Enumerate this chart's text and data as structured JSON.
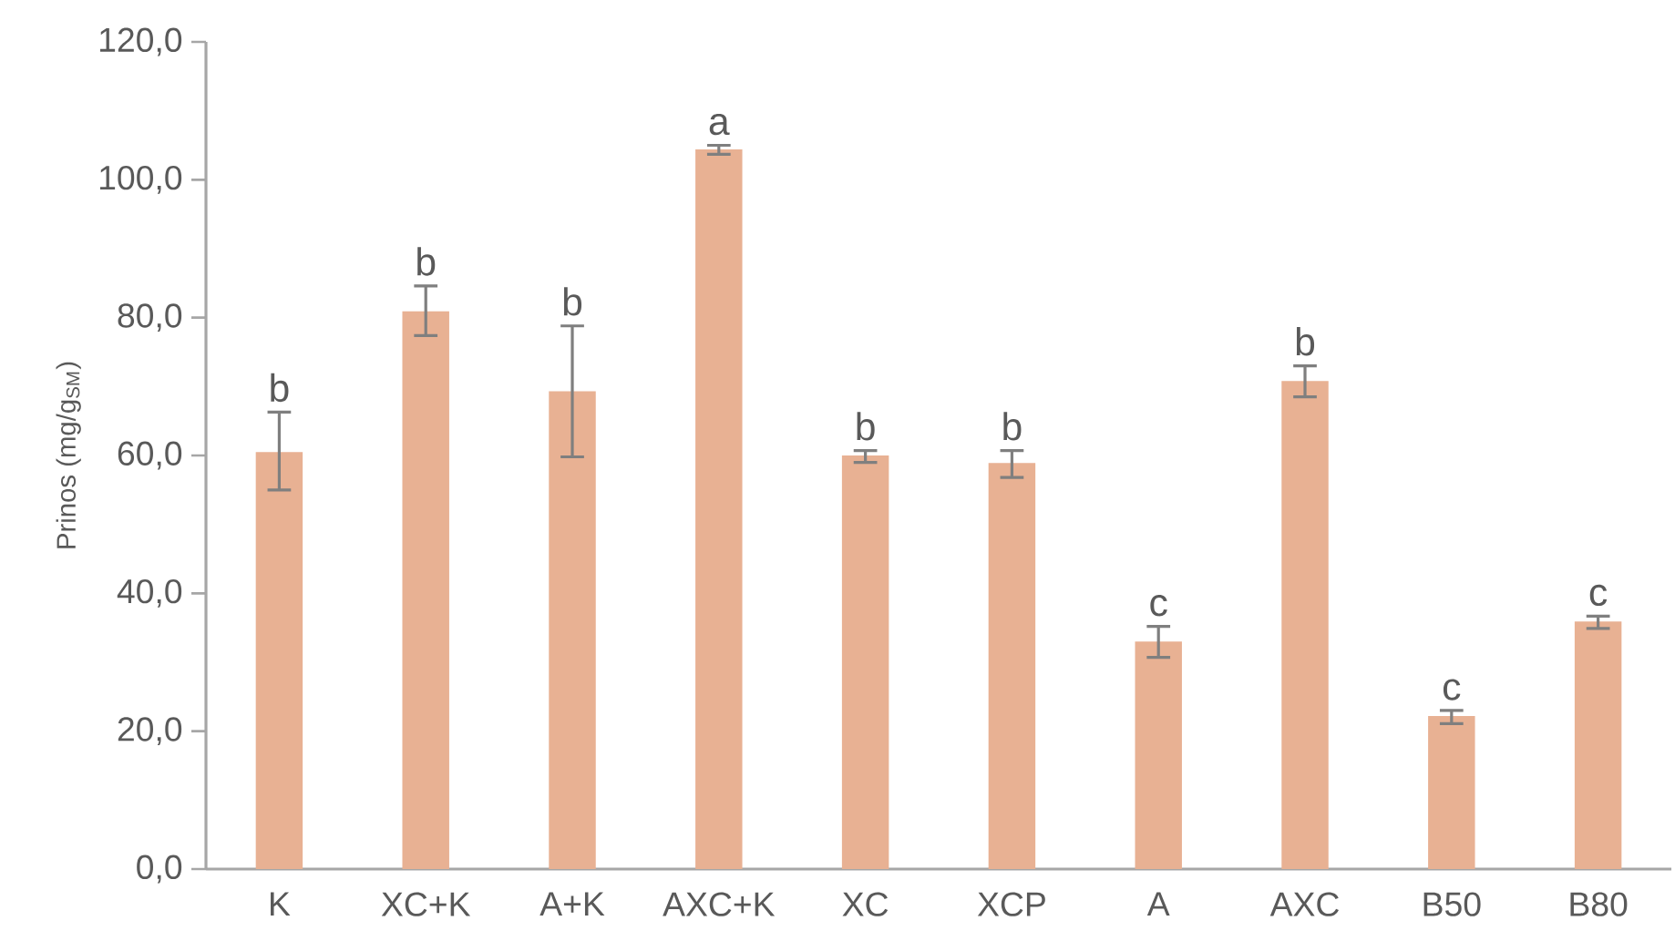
{
  "chart_data": {
    "type": "bar",
    "ylabel": "Prinos (mg/g$_{SM}$)",
    "categories": [
      "K",
      "XC+K",
      "A+K",
      "AXC+K",
      "XC",
      "XCP",
      "A",
      "AXC",
      "B50",
      "B80"
    ],
    "values": [
      60.5,
      80.9,
      69.3,
      104.4,
      60.0,
      58.9,
      33.0,
      70.8,
      22.2,
      35.9
    ],
    "errors": [
      [
        55.0,
        66.3
      ],
      [
        77.4,
        84.6
      ],
      [
        59.8,
        78.8
      ],
      [
        103.7,
        105.0
      ],
      [
        59.0,
        60.7
      ],
      [
        56.8,
        60.7
      ],
      [
        30.7,
        35.2
      ],
      [
        68.5,
        73.0
      ],
      [
        21.1,
        23.0
      ],
      [
        34.9,
        36.7
      ]
    ],
    "color": "#e8b193",
    "ylim": [
      0,
      120
    ],
    "yticks": [
      {
        "value": 0,
        "label": "0,0"
      },
      {
        "value": 20,
        "label": "20,0"
      },
      {
        "value": 40,
        "label": "40,0"
      },
      {
        "value": 60,
        "label": "60,0"
      },
      {
        "value": 80,
        "label": "80,0"
      },
      {
        "value": 100,
        "label": "100,0"
      },
      {
        "value": 120,
        "label": "120,0"
      }
    ],
    "annotations": [
      {
        "text": "b",
        "x": "K",
        "y": 66.3
      },
      {
        "text": "b",
        "x": "XC+K",
        "y": 84.6
      },
      {
        "text": "b",
        "x": "A+K",
        "y": 78.8
      },
      {
        "text": "a",
        "x": "AXC+K",
        "y": 105.0
      },
      {
        "text": "b",
        "x": "XC",
        "y": 60.7
      },
      {
        "text": "b",
        "x": "XCP",
        "y": 60.7
      },
      {
        "text": "c",
        "x": "A",
        "y": 35.2
      },
      {
        "text": "b",
        "x": "AXC",
        "y": 73.0
      },
      {
        "text": "c",
        "x": "B50",
        "y": 23.0
      },
      {
        "text": "c",
        "x": "B80",
        "y": 36.7
      }
    ]
  }
}
